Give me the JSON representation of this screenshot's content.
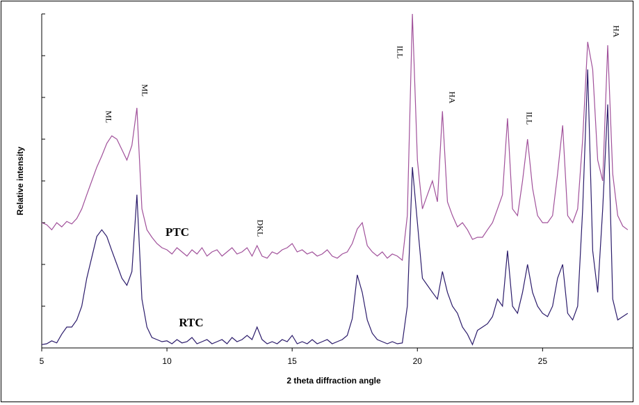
{
  "chart_data": {
    "type": "line",
    "x_label": "2 theta diffraction angle",
    "y_label": "Relative intensity",
    "x": [
      5.0,
      5.2,
      5.4,
      5.6,
      5.8,
      6.0,
      6.2,
      6.4,
      6.6,
      6.8,
      7.0,
      7.2,
      7.4,
      7.6,
      7.8,
      8.0,
      8.2,
      8.4,
      8.6,
      8.8,
      9.0,
      9.2,
      9.4,
      9.6,
      9.8,
      10.0,
      10.2,
      10.4,
      10.6,
      10.8,
      11.0,
      11.2,
      11.4,
      11.6,
      11.8,
      12.0,
      12.2,
      12.4,
      12.6,
      12.8,
      13.0,
      13.2,
      13.4,
      13.6,
      13.8,
      14.0,
      14.2,
      14.4,
      14.6,
      14.8,
      15.0,
      15.2,
      15.4,
      15.6,
      15.8,
      16.0,
      16.2,
      16.4,
      16.6,
      16.8,
      17.0,
      17.2,
      17.4,
      17.6,
      17.8,
      18.0,
      18.2,
      18.4,
      18.6,
      18.8,
      19.0,
      19.2,
      19.4,
      19.6,
      19.8,
      20.0,
      20.2,
      20.4,
      20.6,
      20.8,
      21.0,
      21.2,
      21.4,
      21.6,
      21.8,
      22.0,
      22.2,
      22.4,
      22.6,
      22.8,
      23.0,
      23.2,
      23.4,
      23.6,
      23.8,
      24.0,
      24.2,
      24.4,
      24.6,
      24.8,
      25.0,
      25.2,
      25.4,
      25.6,
      25.8,
      26.0,
      26.2,
      26.4,
      26.6,
      26.8,
      27.0,
      27.2,
      27.4,
      27.6,
      27.8,
      28.0,
      28.2,
      28.4
    ],
    "series": [
      {
        "name": "PTC",
        "color": "#a0509a",
        "values": [
          3.0,
          2.95,
          2.83,
          3.0,
          2.9,
          3.03,
          2.97,
          3.1,
          3.33,
          3.67,
          4.0,
          4.33,
          4.6,
          4.9,
          5.08,
          5.0,
          4.75,
          4.5,
          4.85,
          5.75,
          3.33,
          2.83,
          2.65,
          2.5,
          2.4,
          2.35,
          2.25,
          2.4,
          2.3,
          2.2,
          2.35,
          2.25,
          2.4,
          2.2,
          2.3,
          2.35,
          2.2,
          2.3,
          2.4,
          2.25,
          2.3,
          2.4,
          2.2,
          2.45,
          2.2,
          2.15,
          2.3,
          2.25,
          2.35,
          2.4,
          2.5,
          2.3,
          2.35,
          2.25,
          2.3,
          2.2,
          2.25,
          2.35,
          2.2,
          2.15,
          2.25,
          2.3,
          2.5,
          2.85,
          3.0,
          2.45,
          2.3,
          2.2,
          2.3,
          2.15,
          2.25,
          2.2,
          2.1,
          3.17,
          8.0,
          4.5,
          3.33,
          3.67,
          4.0,
          3.5,
          5.67,
          3.5,
          3.17,
          2.9,
          3.0,
          2.83,
          2.6,
          2.65,
          2.65,
          2.83,
          3.0,
          3.33,
          3.67,
          5.5,
          3.33,
          3.17,
          4.0,
          5.0,
          3.83,
          3.17,
          3.0,
          3.0,
          3.17,
          4.17,
          5.33,
          3.17,
          3.0,
          3.33,
          5.0,
          7.33,
          6.67,
          4.5,
          4.0,
          7.25,
          4.17,
          3.17,
          2.92,
          2.83
        ]
      },
      {
        "name": "RTC",
        "color": "#2a1a6a",
        "values": [
          0.08,
          0.1,
          0.17,
          0.12,
          0.33,
          0.5,
          0.5,
          0.67,
          1.0,
          1.67,
          2.17,
          2.67,
          2.83,
          2.67,
          2.33,
          2.0,
          1.67,
          1.5,
          1.83,
          3.67,
          1.17,
          0.5,
          0.25,
          0.2,
          0.15,
          0.17,
          0.1,
          0.2,
          0.12,
          0.15,
          0.25,
          0.1,
          0.15,
          0.2,
          0.1,
          0.15,
          0.2,
          0.1,
          0.25,
          0.15,
          0.2,
          0.3,
          0.2,
          0.5,
          0.2,
          0.1,
          0.15,
          0.1,
          0.2,
          0.15,
          0.3,
          0.1,
          0.15,
          0.1,
          0.2,
          0.1,
          0.15,
          0.2,
          0.1,
          0.15,
          0.2,
          0.3,
          0.7,
          1.75,
          1.33,
          0.67,
          0.35,
          0.2,
          0.15,
          0.1,
          0.15,
          0.1,
          0.12,
          1.0,
          4.33,
          3.0,
          1.67,
          1.5,
          1.33,
          1.17,
          1.83,
          1.33,
          1.0,
          0.83,
          0.5,
          0.33,
          0.08,
          0.42,
          0.5,
          0.58,
          0.75,
          1.17,
          1.0,
          2.33,
          1.0,
          0.83,
          1.33,
          2.0,
          1.33,
          1.0,
          0.83,
          0.75,
          1.0,
          1.67,
          2.0,
          0.83,
          0.67,
          1.0,
          3.33,
          6.67,
          2.33,
          1.33,
          3.33,
          5.83,
          1.17,
          0.67,
          0.75,
          0.83
        ]
      }
    ],
    "annotations": [
      "ML",
      "ML",
      "DKL",
      "ILL",
      "HA",
      "ILL",
      "HA"
    ],
    "xlim": [
      5,
      28.6
    ],
    "xticks": [
      5,
      10,
      15,
      20,
      25
    ],
    "ylim": [
      0,
      8
    ],
    "yticks": [
      0,
      1,
      2,
      3,
      4,
      5,
      6,
      7,
      8
    ]
  }
}
